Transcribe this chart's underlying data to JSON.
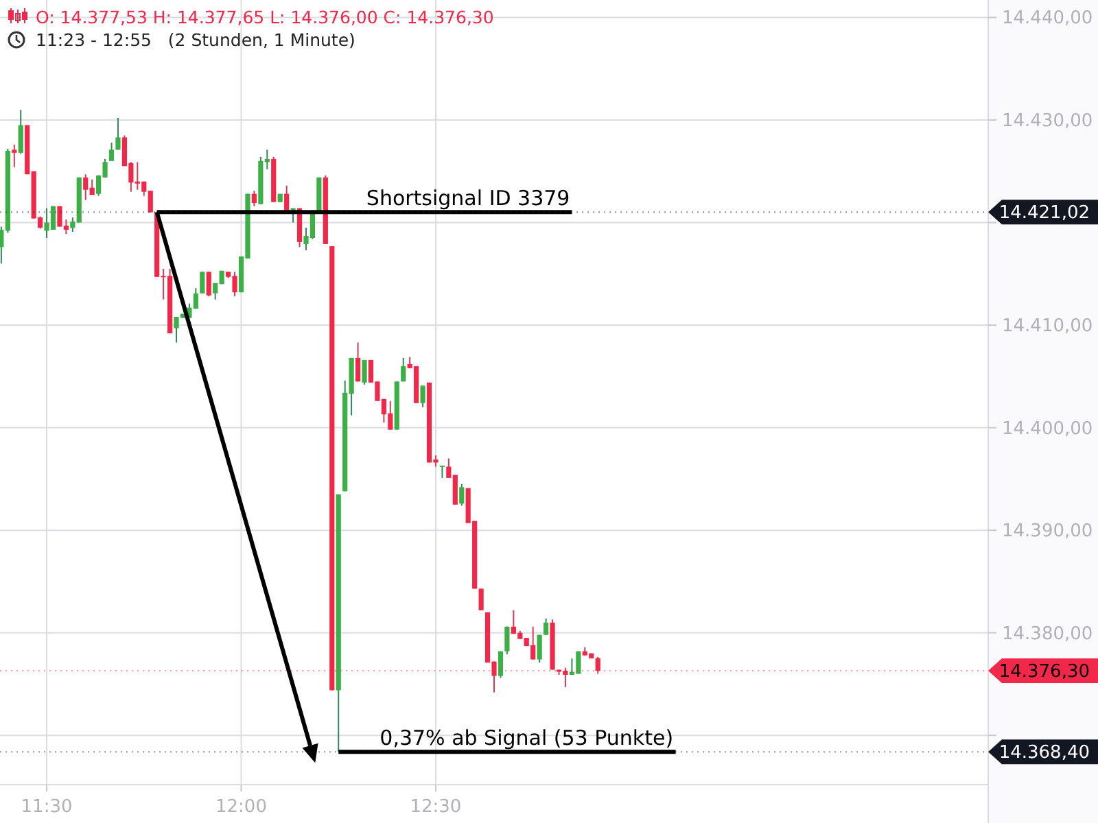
{
  "chart_data": {
    "type": "candlestick",
    "title": "O: 14.377,53  H: 14.377,65  L: 14.376,00  C: 14.376,30",
    "subtitle": "11:23 - 12:55   (2 Stunden, 1 Minute)",
    "x": [
      11.3833,
      11.4,
      11.4167,
      11.4333,
      11.45,
      11.4667,
      11.4833,
      11.5,
      11.5167,
      11.5333,
      11.55,
      11.5667,
      11.5833,
      11.6,
      11.6167,
      11.6333,
      11.65,
      11.6667,
      11.6833,
      11.7,
      11.7167,
      11.7333,
      11.75,
      11.7667,
      11.7833,
      11.8,
      11.8167,
      11.8333,
      11.85,
      11.8667,
      11.8833,
      11.9,
      11.9167,
      11.9333,
      11.95,
      11.9667,
      11.9833,
      12,
      12.0167,
      12.0333,
      12.05,
      12.0667,
      12.0833,
      12.1,
      12.1167,
      12.1333,
      12.15,
      12.1667,
      12.1833,
      12.2,
      12.2167,
      12.2333,
      12.25,
      12.2667,
      12.2833,
      12.3,
      12.3167,
      12.3333,
      12.35,
      12.3667,
      12.3833,
      12.4,
      12.4167,
      12.4333,
      12.45,
      12.4667,
      12.4833,
      12.5,
      12.5167,
      12.5333,
      12.55,
      12.5667,
      12.5833,
      12.6,
      12.6167,
      12.6333,
      12.65,
      12.6667,
      12.6833,
      12.7,
      12.7167,
      12.7333,
      12.75,
      12.7667,
      12.7833,
      12.8,
      12.8167,
      12.8333,
      12.85,
      12.8667,
      12.8833,
      12.9,
      12.9167
    ],
    "ohlc": [
      [
        14417.6,
        14419.6,
        14416.0,
        14419.3
      ],
      [
        14419.2,
        14427.2,
        14419.0,
        14427.0
      ],
      [
        14427.1,
        14427.6,
        14425.4,
        14426.8
      ],
      [
        14426.8,
        14431.0,
        14426.7,
        14429.5
      ],
      [
        14429.5,
        14429.5,
        14424.7,
        14424.7
      ],
      [
        14425.0,
        14425.0,
        14420.4,
        14420.4
      ],
      [
        14420.5,
        14420.6,
        14419.4,
        14419.5
      ],
      [
        14419.2,
        14421.4,
        14418.5,
        14420.0
      ],
      [
        14419.3,
        14421.6,
        14419.3,
        14421.6
      ],
      [
        14421.6,
        14421.6,
        14419.6,
        14419.6
      ],
      [
        14419.7,
        14420.3,
        14418.9,
        14419.3
      ],
      [
        14419.5,
        14420.5,
        14419.1,
        14420.1
      ],
      [
        14420.0,
        14424.4,
        14420.0,
        14424.4
      ],
      [
        14424.4,
        14424.7,
        14422.2,
        14423.2
      ],
      [
        14423.4,
        14424.2,
        14422.7,
        14422.7
      ],
      [
        14422.8,
        14424.6,
        14422.6,
        14424.6
      ],
      [
        14424.4,
        14426.2,
        14424.4,
        14425.9
      ],
      [
        14426.0,
        14427.8,
        14426.0,
        14427.1
      ],
      [
        14427.1,
        14430.2,
        14427.1,
        14428.3
      ],
      [
        14428.3,
        14428.5,
        14425.5,
        14425.5
      ],
      [
        14425.8,
        14425.9,
        14423.0,
        14423.9
      ],
      [
        14424.0,
        14425.9,
        14423.2,
        14423.8
      ],
      [
        14424.0,
        14424.0,
        14422.6,
        14423.0
      ],
      [
        14423.1,
        14423.1,
        14421.0,
        14421.0
      ],
      [
        14421.0,
        14421.0,
        14414.7,
        14414.7
      ],
      [
        14414.8,
        14415.5,
        14412.5,
        14414.7
      ],
      [
        14414.8,
        14415.5,
        14409.2,
        14409.2
      ],
      [
        14409.7,
        14410.8,
        14408.3,
        14410.8
      ],
      [
        14410.7,
        14411.1,
        14410.7,
        14411.1
      ],
      [
        14410.7,
        14412.1,
        14410.7,
        14411.7
      ],
      [
        14411.6,
        14413.6,
        14411.6,
        14413.1
      ],
      [
        14413.1,
        14415.2,
        14413.1,
        14415.2
      ],
      [
        14415.2,
        14415.2,
        14412.8,
        14412.9
      ],
      [
        14413.1,
        14414.1,
        14412.5,
        14414.1
      ],
      [
        14414.0,
        14415.3,
        14414.0,
        14415.3
      ],
      [
        14415.2,
        14415.2,
        14414.6,
        14414.7
      ],
      [
        14414.8,
        14415.2,
        14412.8,
        14413.2
      ],
      [
        14413.2,
        14416.7,
        14413.2,
        14416.7
      ],
      [
        14416.5,
        14422.8,
        14416.5,
        14422.8
      ],
      [
        14422.8,
        14423.1,
        14421.6,
        14421.9
      ],
      [
        14421.8,
        14426.4,
        14421.8,
        14426.0
      ],
      [
        14425.9,
        14427.1,
        14425.2,
        14426.2
      ],
      [
        14426.2,
        14426.4,
        14422.0,
        14422.0
      ],
      [
        14422.0,
        14422.8,
        14422.0,
        14422.8
      ],
      [
        14422.8,
        14423.6,
        14421.2,
        14421.2
      ],
      [
        14421.2,
        14421.4,
        14420.0,
        14421.4
      ],
      [
        14421.4,
        14421.4,
        14417.6,
        14418.1
      ],
      [
        14417.9,
        14419.5,
        14417.3,
        14418.7
      ],
      [
        14418.5,
        14421.0,
        14418.4,
        14421.0
      ],
      [
        14421.0,
        14424.4,
        14421.0,
        14424.4
      ],
      [
        14424.4,
        14424.6,
        14417.9,
        14417.9
      ],
      [
        14417.7,
        14417.7,
        14374.4,
        14374.4
      ],
      [
        14374.4,
        14393.5,
        14368.4,
        14393.5
      ],
      [
        14393.8,
        14404.6,
        14393.8,
        14403.4
      ],
      [
        14403.3,
        14406.8,
        14401.2,
        14406.8
      ],
      [
        14406.8,
        14408.3,
        14404.5,
        14404.5
      ],
      [
        14404.4,
        14406.6,
        14404.2,
        14406.6
      ],
      [
        14406.6,
        14406.6,
        14404.4,
        14404.4
      ],
      [
        14404.5,
        14404.5,
        14402.6,
        14402.6
      ],
      [
        14402.8,
        14402.8,
        14400.5,
        14401.3
      ],
      [
        14401.4,
        14402.6,
        14399.8,
        14399.8
      ],
      [
        14399.8,
        14404.5,
        14399.8,
        14404.5
      ],
      [
        14404.5,
        14406.8,
        14404.5,
        14406.0
      ],
      [
        14406.2,
        14406.9,
        14405.8,
        14405.8
      ],
      [
        14406.0,
        14406.0,
        14402.4,
        14402.4
      ],
      [
        14402.4,
        14404.1,
        14402.0,
        14404.1
      ],
      [
        14404.4,
        14404.4,
        14396.6,
        14396.6
      ],
      [
        14396.9,
        14397.3,
        14396.2,
        14396.6
      ],
      [
        14396.2,
        14396.3,
        14395.1,
        14396.3
      ],
      [
        14396.2,
        14397.0,
        14395.1,
        14395.1
      ],
      [
        14395.4,
        14395.4,
        14392.5,
        14392.5
      ],
      [
        14392.6,
        14394.5,
        14392.4,
        14394.2
      ],
      [
        14394.1,
        14394.1,
        14390.7,
        14390.7
      ],
      [
        14390.9,
        14390.9,
        14384.3,
        14384.3
      ],
      [
        14384.3,
        14384.3,
        14382.2,
        14382.2
      ],
      [
        14382.0,
        14382.0,
        14377.1,
        14377.1
      ],
      [
        14377.2,
        14377.2,
        14374.2,
        14375.8
      ],
      [
        14375.8,
        14378.2,
        14375.6,
        14378.2
      ],
      [
        14378.2,
        14380.6,
        14377.9,
        14380.6
      ],
      [
        14380.6,
        14382.2,
        14379.9,
        14379.9
      ],
      [
        14380.0,
        14380.2,
        14379.4,
        14379.4
      ],
      [
        14379.5,
        14379.5,
        14378.7,
        14378.7
      ],
      [
        14378.8,
        14380.6,
        14377.4,
        14377.4
      ],
      [
        14377.4,
        14379.8,
        14377.1,
        14379.8
      ],
      [
        14379.8,
        14381.4,
        14379.8,
        14381.0
      ],
      [
        14381.0,
        14381.3,
        14376.4,
        14376.4
      ],
      [
        14376.4,
        14376.4,
        14375.9,
        14376.2
      ],
      [
        14376.3,
        14376.6,
        14374.7,
        14375.9
      ],
      [
        14375.9,
        14377.5,
        14375.9,
        14376.2
      ],
      [
        14376.0,
        14378.2,
        14376.0,
        14378.2
      ],
      [
        14378.2,
        14378.6,
        14377.8,
        14377.8
      ],
      [
        14378.0,
        14378.0,
        14377.5,
        14377.5
      ],
      [
        14377.53,
        14377.65,
        14376.0,
        14376.3
      ]
    ],
    "series": [
      {
        "type": "line",
        "color": "#000000",
        "x": [
          11.7833,
          12.85
        ],
        "values": [
          14421.02,
          14421.02
        ]
      },
      {
        "type": "line",
        "color": "#000000",
        "x": [
          12.25,
          13.1167
        ],
        "values": [
          14368.4,
          14368.4
        ]
      }
    ],
    "annotations": [
      {
        "text": "Shortsignal ID 3379",
        "x": 12.5833,
        "y": 14421.02
      },
      {
        "text": "0,37% ab Signal (53 Punkte)",
        "x": 12.7333,
        "y": 14368.4
      }
    ],
    "ref_lines": [
      {
        "axis": "y",
        "value": 14421.02,
        "label": "14.421,02",
        "color": "#131722"
      },
      {
        "axis": "y",
        "value": 14376.3,
        "label": "14.376,30",
        "color": "#f2284a"
      },
      {
        "axis": "y",
        "value": 14368.4,
        "label": "14.368,40",
        "color": "#131722"
      }
    ],
    "xlim": [
      11.38,
      13.92
    ],
    "xticks": [
      {
        "value": 11.5,
        "label": "11:30"
      },
      {
        "value": 12,
        "label": "12:00"
      },
      {
        "value": 12.5,
        "label": "12:30"
      }
    ],
    "ylim": [
      14365.2,
      14441.7
    ],
    "yticks": [
      {
        "value": 14370,
        "label": null
      },
      {
        "value": 14380,
        "label": "14.380,00"
      },
      {
        "value": 14390,
        "label": "14.390,00"
      },
      {
        "value": 14400,
        "label": "14.400,00"
      },
      {
        "value": 14410,
        "label": "14.410,00"
      },
      {
        "value": 14420,
        "label": null
      },
      {
        "value": 14430,
        "label": "14.430,00"
      },
      {
        "value": 14440,
        "label": "14.440,00"
      }
    ],
    "grid": true
  }
}
